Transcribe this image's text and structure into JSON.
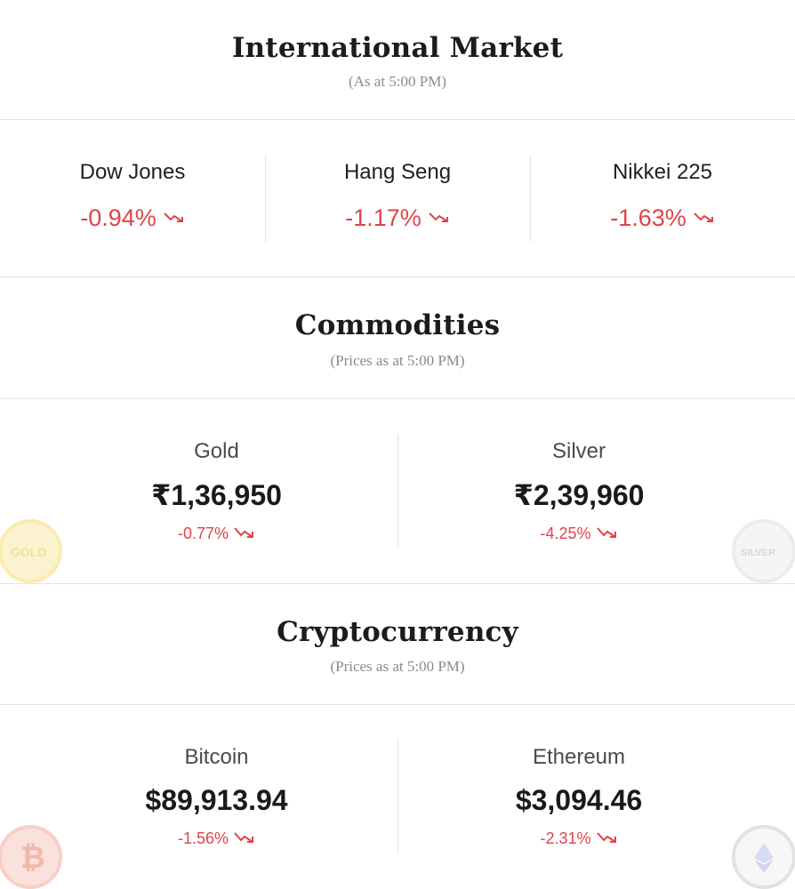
{
  "international": {
    "title": "International Market",
    "subtitle": "(As at 5:00 PM)",
    "indices": [
      {
        "name": "Dow Jones",
        "change": "-0.94%"
      },
      {
        "name": "Hang Seng",
        "change": "-1.17%"
      },
      {
        "name": "Nikkei 225",
        "change": "-1.63%"
      }
    ]
  },
  "commodities": {
    "title": "Commodities",
    "subtitle": "(Prices as at 5:00 PM)",
    "items": [
      {
        "name": "Gold",
        "price": "₹1,36,950",
        "change": "-0.77%",
        "icon": "gold-coin-icon",
        "icon_text": "GOLD"
      },
      {
        "name": "Silver",
        "price": "₹2,39,960",
        "change": "-4.25%",
        "icon": "silver-coin-icon",
        "icon_text": "SILVER"
      }
    ]
  },
  "crypto": {
    "title": "Cryptocurrency",
    "subtitle": "(Prices as at 5:00 PM)",
    "items": [
      {
        "name": "Bitcoin",
        "price": "$89,913.94",
        "change": "-1.56%",
        "icon": "bitcoin-coin-icon",
        "icon_text": "₿"
      },
      {
        "name": "Ethereum",
        "price": "$3,094.46",
        "change": "-2.31%",
        "icon": "ethereum-coin-icon"
      }
    ]
  },
  "colors": {
    "negative": "#e0434a",
    "divider": "#e4e4e4",
    "subtitle": "#8a8a8a"
  }
}
